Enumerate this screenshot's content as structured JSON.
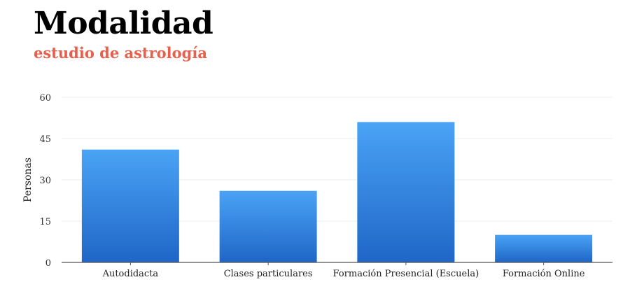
{
  "header": {
    "title": "Modalidad",
    "subtitle": "estudio de astrología"
  },
  "colors": {
    "title": "#000000",
    "subtitle": "#e8604c",
    "bar_top": "#4aa3f5",
    "bar_bottom": "#1f66c6",
    "grid": "#eeeeee",
    "axis": "#555555"
  },
  "chart_data": {
    "type": "bar",
    "title": "Modalidad",
    "subtitle": "estudio de astrología",
    "categories": [
      "Autodidacta",
      "Clases particulares",
      "Formación Presencial (Escuela)",
      "Formación Online"
    ],
    "series": [
      {
        "values": [
          41,
          26,
          51,
          10
        ]
      }
    ],
    "xlabel": "",
    "ylabel": "Personas",
    "ylim": [
      0,
      60
    ],
    "yticks": [
      0,
      15,
      30,
      45,
      60
    ],
    "grid": true,
    "legend": "none"
  }
}
